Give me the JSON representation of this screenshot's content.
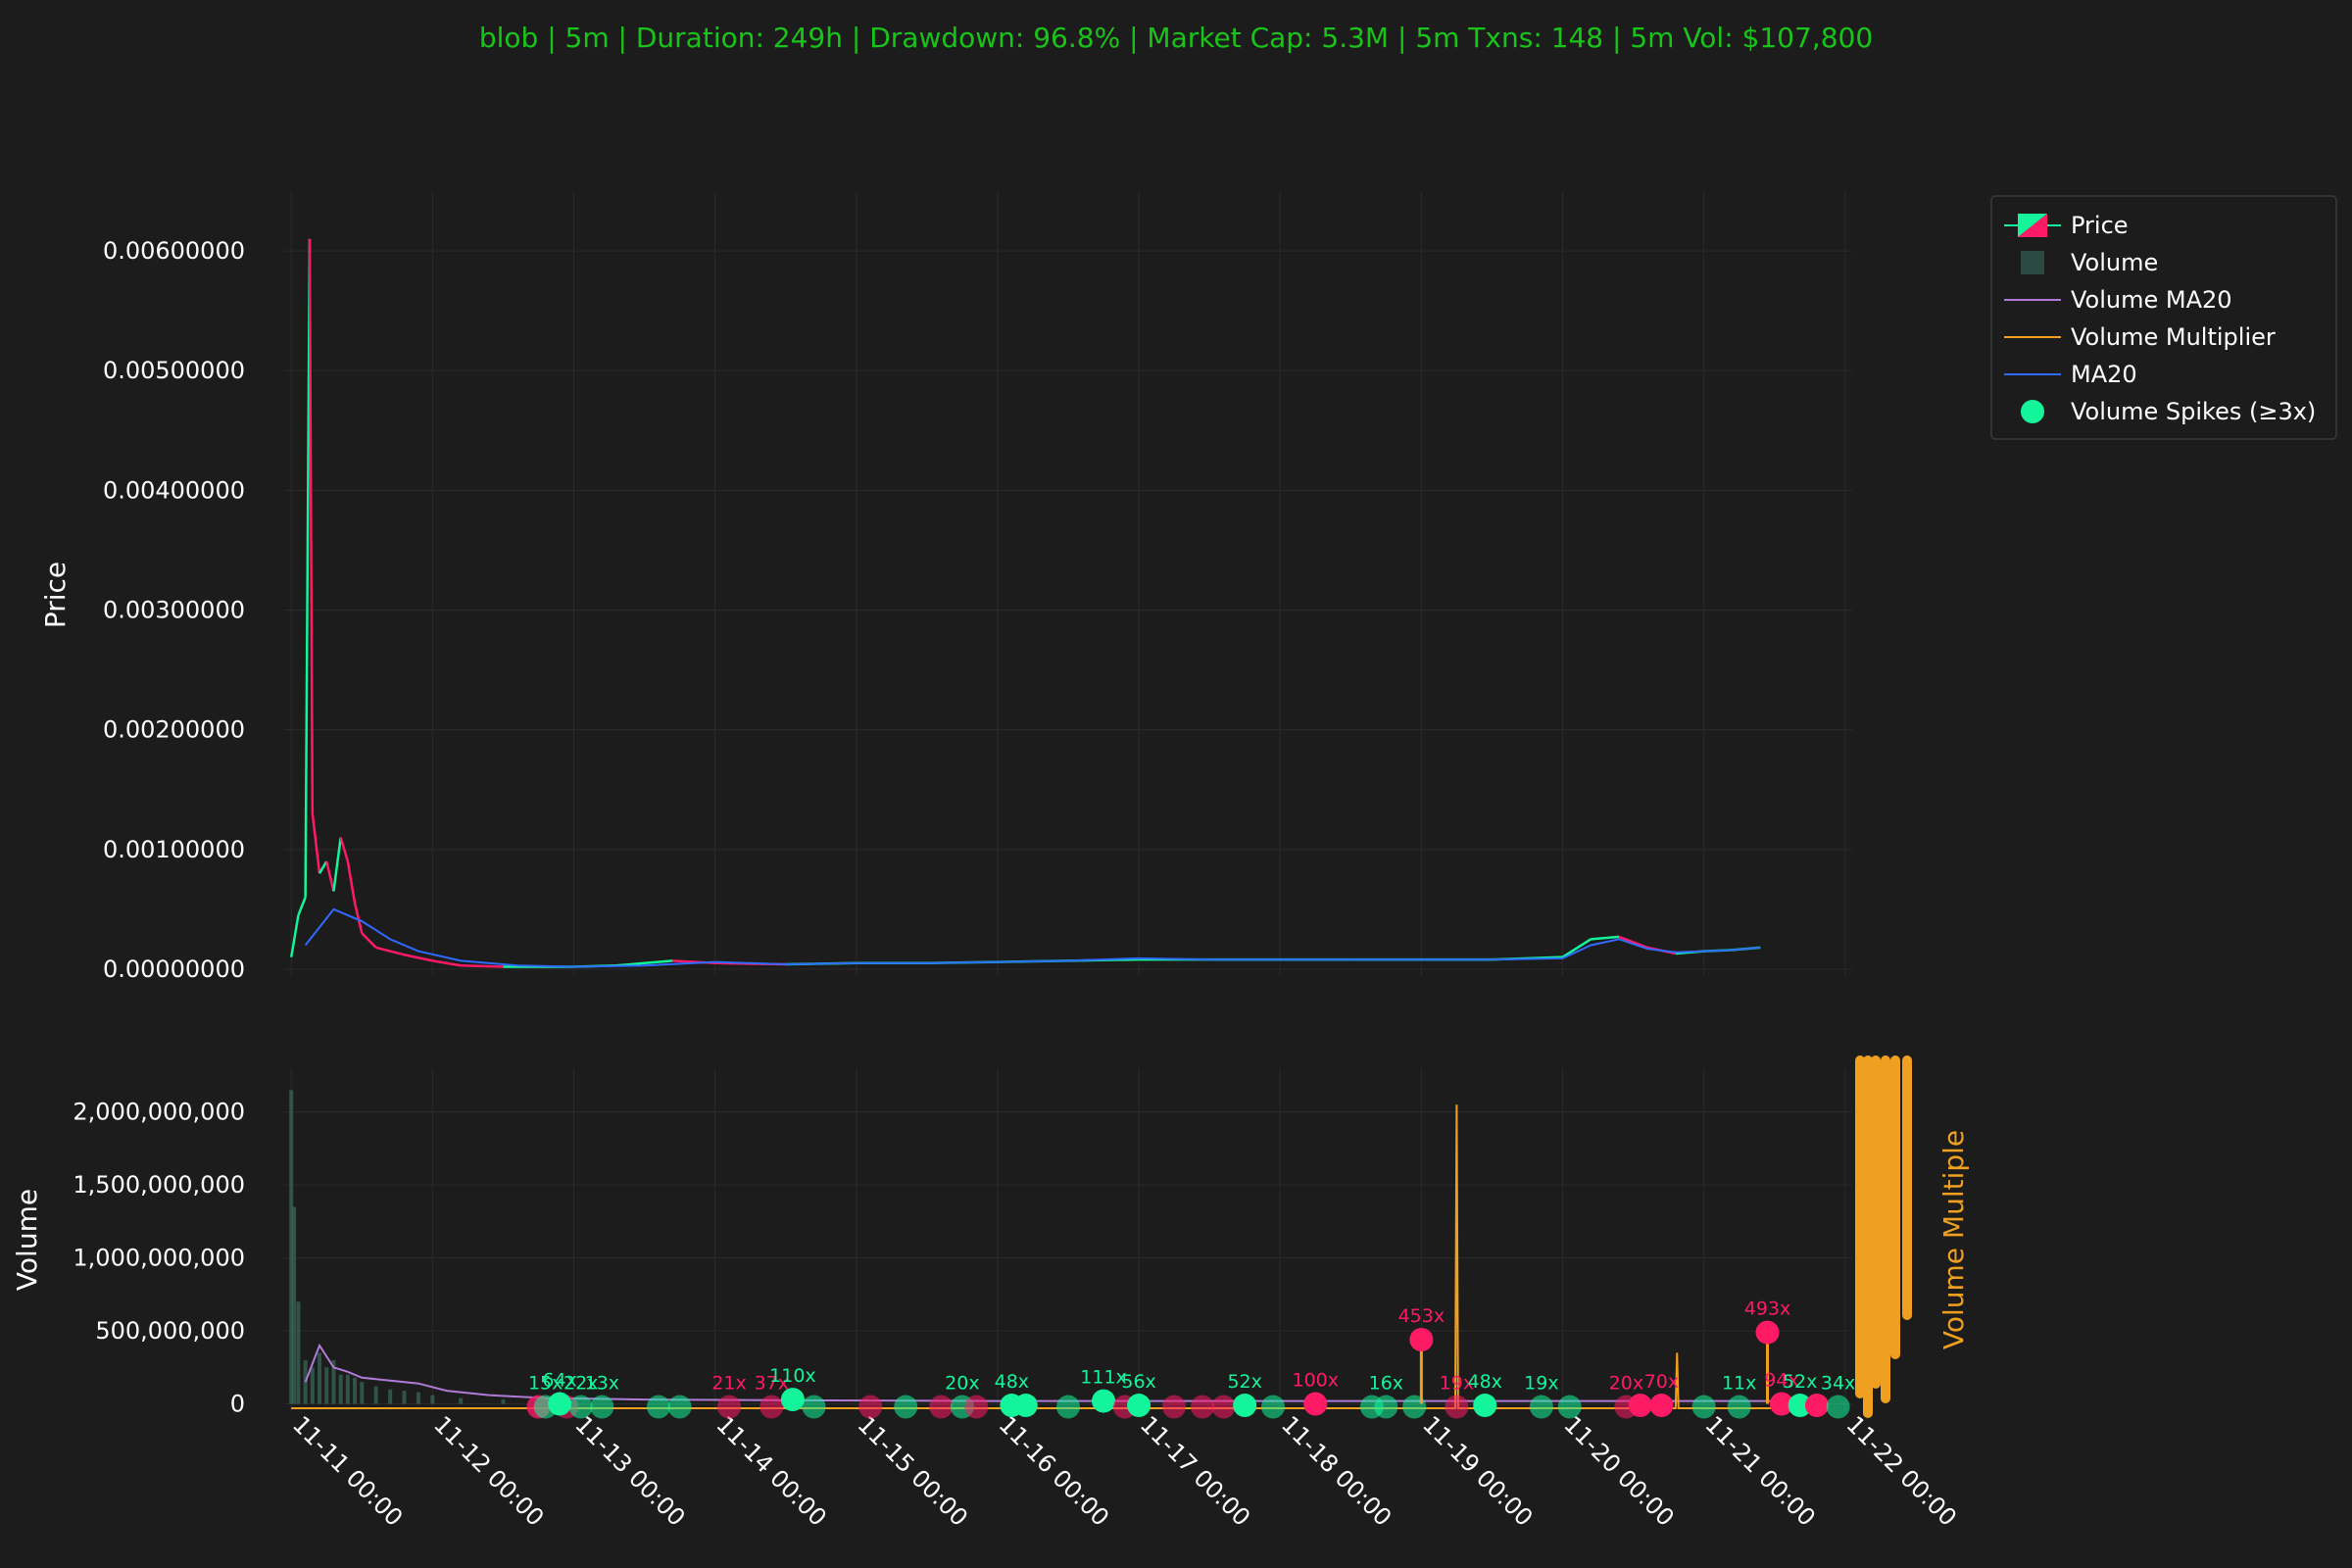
{
  "chart_data": {
    "type": "candlestick",
    "title": "blob | 5m | Duration: 249h | Drawdown: 96.8% | Market Cap: 5.3M | 5m Txns: 148 | 5m Vol: $107,800",
    "colors": {
      "background": "#1c1c1c",
      "title": "#19c419",
      "up": "#14f59b",
      "down": "#ff1a66",
      "ma20": "#2f6bff",
      "volume_ma20": "#b07ad6",
      "volume_multiplier": "#f0a020",
      "grid": "#2a2a2a"
    },
    "x_axis": {
      "start": "11-11 00:00",
      "end": "11-22 00:00",
      "tick_labels": [
        "11-11 00:00",
        "11-12 00:00",
        "11-13 00:00",
        "11-14 00:00",
        "11-15 00:00",
        "11-16 00:00",
        "11-17 00:00",
        "11-18 00:00",
        "11-19 00:00",
        "11-20 00:00",
        "11-21 00:00",
        "11-22 00:00"
      ],
      "tick_days": [
        0,
        1,
        2,
        3,
        4,
        5,
        6,
        7,
        8,
        9,
        10,
        11
      ],
      "range_days": [
        -0.05,
        11.05
      ]
    },
    "price_panel": {
      "ylabel": "Price",
      "ylim": [
        -5e-05,
        0.0065
      ],
      "tick_values": [
        0.0,
        0.001,
        0.002,
        0.003,
        0.004,
        0.005,
        0.006
      ],
      "tick_labels": [
        "0.00000000",
        "0.00100000",
        "0.00200000",
        "0.00300000",
        "0.00400000",
        "0.00500000",
        "0.00600000"
      ],
      "series_price": {
        "name": "Price",
        "x_days": [
          0.0,
          0.05,
          0.1,
          0.13,
          0.15,
          0.2,
          0.25,
          0.3,
          0.35,
          0.4,
          0.45,
          0.5,
          0.6,
          0.7,
          0.8,
          1.0,
          1.2,
          1.5,
          2.0,
          2.3,
          2.5,
          2.7,
          3.0,
          3.5,
          4.0,
          4.5,
          5.0,
          5.5,
          6.0,
          6.5,
          7.0,
          7.5,
          8.0,
          8.5,
          9.0,
          9.2,
          9.4,
          9.6,
          9.8,
          10.0,
          10.2,
          10.4
        ],
        "values": [
          0.0001,
          0.00045,
          0.0006,
          0.0061,
          0.0013,
          0.0008,
          0.0009,
          0.00065,
          0.0011,
          0.0009,
          0.00055,
          0.0003,
          0.00018,
          0.00015,
          0.00012,
          7e-05,
          3e-05,
          2e-05,
          2e-05,
          3e-05,
          5e-05,
          7e-05,
          5e-05,
          4e-05,
          5e-05,
          5e-05,
          6e-05,
          7e-05,
          8e-05,
          8e-05,
          8e-05,
          8e-05,
          8e-05,
          8e-05,
          0.0001,
          0.00025,
          0.00027,
          0.00018,
          0.00013,
          0.00015,
          0.00016,
          0.00018
        ]
      },
      "series_ma20": {
        "name": "MA20",
        "x_days": [
          0.1,
          0.3,
          0.5,
          0.7,
          0.9,
          1.2,
          1.6,
          2.0,
          2.5,
          3.0,
          3.5,
          4.0,
          4.5,
          5.0,
          5.5,
          6.0,
          6.5,
          7.0,
          7.5,
          8.0,
          8.5,
          9.0,
          9.2,
          9.4,
          9.6,
          9.8,
          10.0,
          10.2,
          10.4
        ],
        "values": [
          0.0002,
          0.0005,
          0.0004,
          0.00025,
          0.00015,
          7e-05,
          3e-05,
          2e-05,
          3e-05,
          6e-05,
          4e-05,
          5e-05,
          5e-05,
          6e-05,
          7e-05,
          9e-05,
          8e-05,
          8e-05,
          8e-05,
          8e-05,
          8e-05,
          9e-05,
          0.0002,
          0.00025,
          0.00017,
          0.00014,
          0.00015,
          0.00016,
          0.00018
        ]
      }
    },
    "volume_panel": {
      "ylabel": "Volume",
      "y2label": "Volume Multiple",
      "ylim": [
        -50000000,
        2300000000
      ],
      "tick_values": [
        0,
        500000000,
        1000000000,
        1500000000,
        2000000000
      ],
      "tick_labels": [
        "0",
        "500,000,000",
        "1,000,000,000",
        "1,500,000,000",
        "2,000,000,000"
      ],
      "volume_bars": {
        "x_days": [
          0.0,
          0.02,
          0.05,
          0.1,
          0.15,
          0.2,
          0.25,
          0.3,
          0.35,
          0.4,
          0.45,
          0.5,
          0.6,
          0.7,
          0.8,
          0.9,
          1.0,
          1.2,
          1.5
        ],
        "values": [
          2150000000,
          1350000000,
          700000000,
          300000000,
          250000000,
          350000000,
          250000000,
          300000000,
          200000000,
          200000000,
          180000000,
          150000000,
          120000000,
          100000000,
          90000000,
          80000000,
          60000000,
          40000000,
          30000000
        ]
      },
      "volume_ma20": {
        "x_days": [
          0.1,
          0.2,
          0.3,
          0.4,
          0.5,
          0.7,
          0.9,
          1.1,
          1.4,
          1.8,
          2.5,
          3.5,
          5.0,
          7.0,
          9.0,
          10.5
        ],
        "values": [
          150000000,
          400000000,
          250000000,
          220000000,
          180000000,
          160000000,
          140000000,
          90000000,
          60000000,
          40000000,
          30000000,
          25000000,
          20000000,
          20000000,
          20000000,
          20000000
        ]
      },
      "volume_multiplier": {
        "x_days": [
          0.0,
          8.24,
          8.25,
          8.26,
          8.28,
          9.8,
          9.81,
          9.82,
          10.5
        ],
        "values": [
          -30000000,
          -30000000,
          2050000000,
          -30000000,
          -30000000,
          -30000000,
          350000000,
          -30000000,
          -30000000
        ]
      },
      "spikes": [
        {
          "day": 1.75,
          "value": -20000000,
          "label": "",
          "color": "down"
        },
        {
          "day": 1.95,
          "value": -20000000,
          "label": "",
          "color": "down"
        },
        {
          "day": 1.75,
          "value": -20000000,
          "label": "",
          "color": "down"
        },
        {
          "day": 1.8,
          "value": -20000000,
          "label": "15x",
          "color": "up"
        },
        {
          "day": 1.9,
          "value": 0,
          "label": "64x",
          "color": "up"
        },
        {
          "day": 2.05,
          "value": -20000000,
          "label": "22x",
          "color": "up"
        },
        {
          "day": 2.2,
          "value": -20000000,
          "label": "13x",
          "color": "up"
        },
        {
          "day": 2.6,
          "value": -20000000,
          "label": "",
          "color": "up"
        },
        {
          "day": 2.75,
          "value": -20000000,
          "label": "",
          "color": "up"
        },
        {
          "day": 3.1,
          "value": -20000000,
          "label": "21x",
          "color": "down"
        },
        {
          "day": 3.4,
          "value": -20000000,
          "label": "37x",
          "color": "down"
        },
        {
          "day": 3.55,
          "value": 30000000,
          "label": "110x",
          "color": "up"
        },
        {
          "day": 3.7,
          "value": -20000000,
          "label": "",
          "color": "up"
        },
        {
          "day": 4.1,
          "value": -20000000,
          "label": "",
          "color": "down"
        },
        {
          "day": 4.35,
          "value": -20000000,
          "label": "",
          "color": "up"
        },
        {
          "day": 4.6,
          "value": -20000000,
          "label": "",
          "color": "down"
        },
        {
          "day": 4.75,
          "value": -20000000,
          "label": "20x",
          "color": "up"
        },
        {
          "day": 4.85,
          "value": -20000000,
          "label": "",
          "color": "down"
        },
        {
          "day": 5.1,
          "value": -10000000,
          "label": "48x",
          "color": "up"
        },
        {
          "day": 5.2,
          "value": -10000000,
          "label": "",
          "color": "up"
        },
        {
          "day": 5.5,
          "value": -20000000,
          "label": "",
          "color": "up"
        },
        {
          "day": 5.75,
          "value": 20000000,
          "label": "111x",
          "color": "up"
        },
        {
          "day": 5.9,
          "value": -20000000,
          "label": "",
          "color": "down"
        },
        {
          "day": 6.0,
          "value": -10000000,
          "label": "56x",
          "color": "up"
        },
        {
          "day": 6.25,
          "value": -20000000,
          "label": "",
          "color": "down"
        },
        {
          "day": 6.45,
          "value": -20000000,
          "label": "",
          "color": "down"
        },
        {
          "day": 6.6,
          "value": -20000000,
          "label": "",
          "color": "down"
        },
        {
          "day": 6.75,
          "value": -10000000,
          "label": "52x",
          "color": "up"
        },
        {
          "day": 6.95,
          "value": -20000000,
          "label": "",
          "color": "up"
        },
        {
          "day": 7.25,
          "value": 0,
          "label": "100x",
          "color": "down"
        },
        {
          "day": 7.65,
          "value": -20000000,
          "label": "",
          "color": "up"
        },
        {
          "day": 7.75,
          "value": -20000000,
          "label": "16x",
          "color": "up"
        },
        {
          "day": 7.95,
          "value": -20000000,
          "label": "",
          "color": "up"
        },
        {
          "day": 8.0,
          "value": 440000000,
          "label": "453x",
          "color": "down"
        },
        {
          "day": 8.25,
          "value": -20000000,
          "label": "19x",
          "color": "down"
        },
        {
          "day": 8.45,
          "value": -10000000,
          "label": "48x",
          "color": "up"
        },
        {
          "day": 8.85,
          "value": -20000000,
          "label": "19x",
          "color": "up"
        },
        {
          "day": 9.05,
          "value": -20000000,
          "label": "",
          "color": "up"
        },
        {
          "day": 9.45,
          "value": -20000000,
          "label": "20x",
          "color": "down"
        },
        {
          "day": 9.55,
          "value": -10000000,
          "label": "",
          "color": "down"
        },
        {
          "day": 9.7,
          "value": -10000000,
          "label": "70x",
          "color": "down"
        },
        {
          "day": 10.0,
          "value": -20000000,
          "label": "",
          "color": "up"
        },
        {
          "day": 10.25,
          "value": -20000000,
          "label": "11x",
          "color": "up"
        },
        {
          "day": 10.45,
          "value": 490000000,
          "label": "493x",
          "color": "down"
        },
        {
          "day": 10.55,
          "value": 0,
          "label": "94x",
          "color": "down"
        },
        {
          "day": 10.68,
          "value": -10000000,
          "label": "52x",
          "color": "up"
        },
        {
          "day": 10.8,
          "value": -10000000,
          "label": "",
          "color": "down"
        },
        {
          "day": 10.95,
          "value": -20000000,
          "label": "34x",
          "color": "up"
        }
      ]
    },
    "legend": {
      "placement": "top-right",
      "entries": [
        {
          "label": "Price",
          "icon": "candle-icon"
        },
        {
          "label": "Volume",
          "icon": "volume-bar-icon"
        },
        {
          "label": "Volume MA20",
          "icon": "line-purple-icon"
        },
        {
          "label": "Volume Multiplier",
          "icon": "line-orange-icon"
        },
        {
          "label": "MA20",
          "icon": "line-blue-icon"
        },
        {
          "label": "Volume Spikes (≥3x)",
          "icon": "spike-dot-icon"
        }
      ]
    }
  }
}
